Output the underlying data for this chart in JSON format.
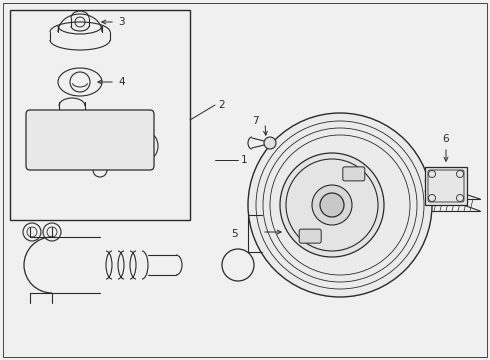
{
  "bg_color": "#f0f0f0",
  "line_color": "#2a2a2a",
  "fig_w": 4.9,
  "fig_h": 3.6
}
